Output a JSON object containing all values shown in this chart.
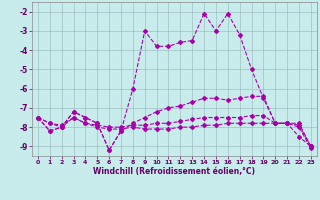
{
  "background_color": "#c8ecec",
  "grid_color": "#a0c0c0",
  "line_color": "#aa00aa",
  "xlabel": "Windchill (Refroidissement éolien,°C)",
  "xlabel_color": "#660066",
  "tick_color": "#660066",
  "xlim": [
    -0.5,
    23.5
  ],
  "ylim": [
    -9.5,
    -1.5
  ],
  "xtick_vals": [
    0,
    1,
    2,
    3,
    4,
    5,
    6,
    7,
    8,
    9,
    10,
    11,
    12,
    13,
    14,
    15,
    16,
    17,
    18,
    19,
    20,
    21,
    22,
    23
  ],
  "ytick_vals": [
    -9,
    -8,
    -7,
    -6,
    -5,
    -4,
    -3,
    -2
  ],
  "curve1_y": [
    -7.5,
    -8.2,
    -8.0,
    -7.2,
    -7.5,
    -7.8,
    -9.2,
    -8.2,
    -6.0,
    -3.0,
    -3.8,
    -3.8,
    -3.6,
    -3.5,
    -2.1,
    -3.0,
    -2.1,
    -3.2,
    -5.0,
    -6.5,
    -7.8,
    -7.8,
    -8.5,
    -9.0
  ],
  "curve2_y": [
    -7.5,
    -8.2,
    -8.0,
    -7.2,
    -7.5,
    -7.8,
    -9.2,
    -8.2,
    -7.8,
    -7.5,
    -7.2,
    -7.0,
    -6.9,
    -6.7,
    -6.5,
    -6.5,
    -6.6,
    -6.5,
    -6.4,
    -6.4,
    -7.8,
    -7.8,
    -7.8,
    -9.0
  ],
  "curve3_y": [
    -7.5,
    -7.8,
    -7.9,
    -7.5,
    -7.8,
    -7.9,
    -8.0,
    -8.0,
    -7.9,
    -7.9,
    -7.8,
    -7.8,
    -7.7,
    -7.6,
    -7.5,
    -7.5,
    -7.5,
    -7.5,
    -7.4,
    -7.4,
    -7.8,
    -7.8,
    -7.9,
    -9.0
  ],
  "curve4_y": [
    -7.5,
    -7.8,
    -8.0,
    -7.5,
    -7.8,
    -8.0,
    -8.1,
    -8.1,
    -8.0,
    -8.1,
    -8.1,
    -8.1,
    -8.0,
    -8.0,
    -7.9,
    -7.9,
    -7.8,
    -7.8,
    -7.8,
    -7.8,
    -7.8,
    -7.8,
    -8.0,
    -9.1
  ],
  "spine_color": "#888888",
  "figsize": [
    3.2,
    2.0
  ],
  "dpi": 100
}
